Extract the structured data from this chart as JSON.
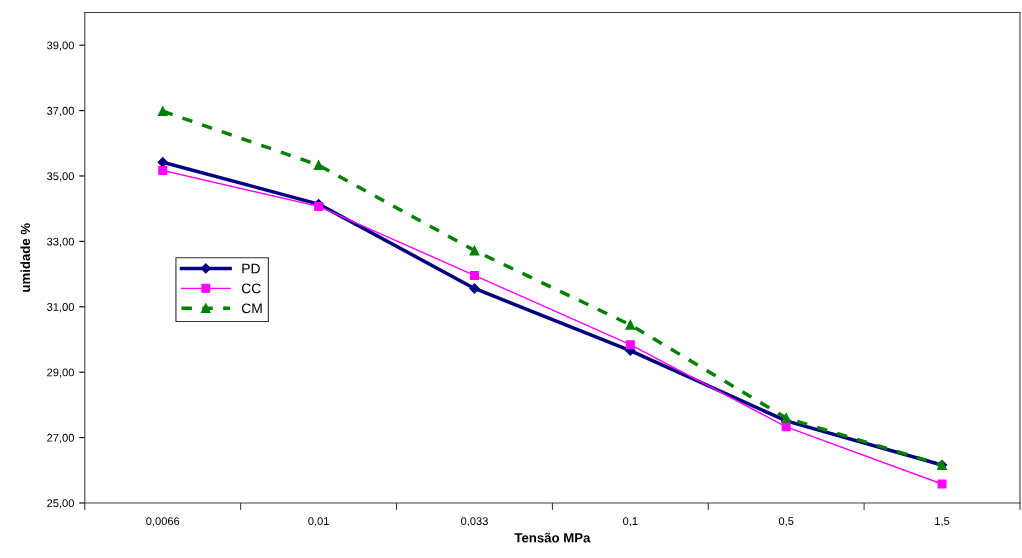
{
  "chart_data": {
    "type": "line",
    "xlabel": "Tensão MPa",
    "ylabel": "umidade %",
    "categories": [
      "0,0066",
      "0,01",
      "0,033",
      "0,1",
      "0,5",
      "1,5"
    ],
    "series": [
      {
        "name": "PD",
        "color": "#000080",
        "marker": "diamond",
        "line_style": "solid",
        "values": [
          35.42,
          34.14,
          31.56,
          29.66,
          27.51,
          26.16
        ]
      },
      {
        "name": "CC",
        "color": "#ff00ff",
        "marker": "square",
        "line_style": "solid",
        "values": [
          35.17,
          34.07,
          31.96,
          29.84,
          27.33,
          25.58
        ]
      },
      {
        "name": "CM",
        "color": "#008000",
        "marker": "triangle",
        "line_style": "dashed",
        "values": [
          36.98,
          35.33,
          32.72,
          30.45,
          27.6,
          26.16
        ]
      }
    ],
    "ylim": [
      25,
      40
    ],
    "yticks": [
      {
        "value": 25,
        "label": "25,00"
      },
      {
        "value": 27,
        "label": "27,00"
      },
      {
        "value": 29,
        "label": "29,00"
      },
      {
        "value": 31,
        "label": "31,00"
      },
      {
        "value": 33,
        "label": "33,00"
      },
      {
        "value": 35,
        "label": "35,00"
      },
      {
        "value": 37,
        "label": "37,00"
      },
      {
        "value": 39,
        "label": "39,00"
      }
    ],
    "grid": false,
    "legend": "center left"
  }
}
